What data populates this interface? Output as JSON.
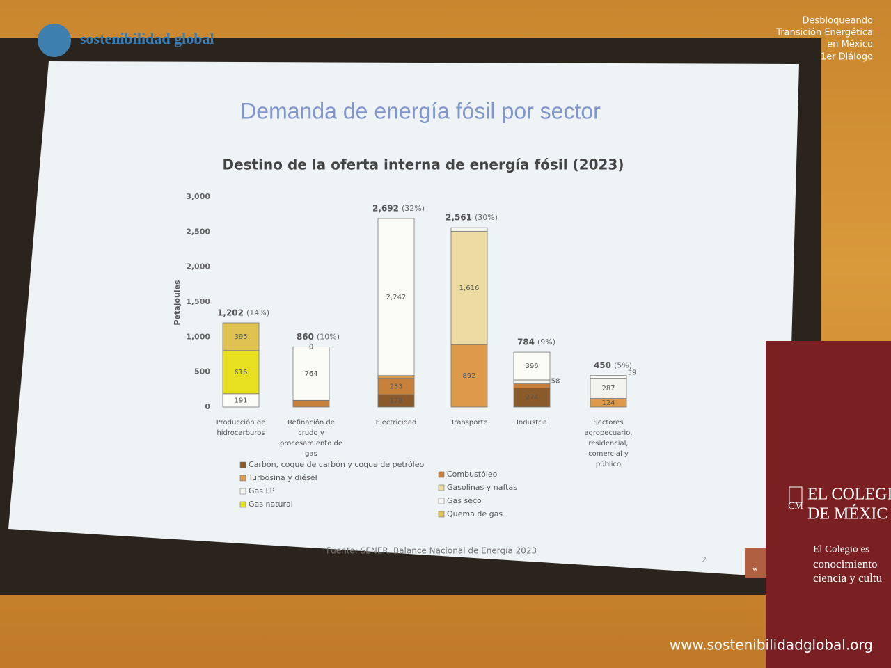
{
  "watermark": {
    "logo": "sostenibilidad global",
    "event": [
      "Desbloqueando",
      "Transición Energética",
      "en México",
      "1er Diálogo"
    ],
    "url": "www.sostenibilidadglobal.org"
  },
  "banner": {
    "logo": "CM",
    "name": [
      "EL COLEGI",
      "DE MÉXIC"
    ],
    "motto": [
      "El Colegio es",
      "conocimiento",
      "ciencia y cultu"
    ]
  },
  "slide": {
    "title": "Demanda de energía fósil por sector",
    "source": "Fuente: SENER. Balance Nacional de Energía 2023",
    "page": "2",
    "nav": "«"
  },
  "chart_data": {
    "type": "stacked_bar",
    "title": "Destino de la oferta interna de energía fósil (2023)",
    "y_label": "Petajoules",
    "categories": [
      "Producción de hidrocarburos",
      "Refinación de crudo y procesamiento de gas",
      "Electricidad",
      "Transporte",
      "Industria",
      "Sectores agropecuario, residencial, comercial y público"
    ],
    "totals": [
      {
        "value": 1202,
        "label": "1,202"
      },
      860,
      {
        "value": 2692,
        "label": "2,692"
      },
      {
        "value": 2561,
        "label": "2,561"
      },
      784,
      450
    ],
    "shares": [
      "(14%)",
      "(10%)",
      "(32%)",
      "(30%)",
      "(9%)",
      "(5%)"
    ],
    "series": [
      {
        "name": "Carbón, coque de carbón y coque de petróleo",
        "color": "#8a5a2b",
        "values": [
          null,
          null,
          178,
          null,
          274,
          null
        ],
        "value_labels": [
          null,
          null,
          "178",
          null,
          "274",
          null
        ]
      },
      {
        "name": "Combustóleo",
        "color": "#c7803a",
        "values": [
          null,
          96,
          233,
          null,
          58,
          null
        ],
        "value_labels": [
          null,
          null,
          "233",
          null,
          "58",
          null
        ]
      },
      {
        "name": "Turbosina y diésel",
        "color": "#dc9a4a",
        "values": [
          null,
          null,
          39,
          892,
          null,
          124
        ],
        "value_labels": [
          null,
          null,
          null,
          "892",
          null,
          "124"
        ]
      },
      {
        "name": "Gasolinas y naftas",
        "color": "#ecdca2",
        "values": [
          null,
          null,
          null,
          1616,
          null,
          null
        ],
        "value_labels": [
          null,
          null,
          null,
          "1,616",
          null,
          null
        ]
      },
      {
        "name": "Gas LP",
        "color": "#f4f4ee",
        "values": [
          null,
          null,
          null,
          53,
          56,
          287
        ],
        "value_labels": [
          null,
          null,
          null,
          null,
          null,
          "287"
        ]
      },
      {
        "name": "Gas seco",
        "color": "#fbfbf8",
        "values": [
          191,
          764,
          2242,
          null,
          396,
          39
        ],
        "value_labels": [
          "191",
          "764",
          "2,242",
          null,
          "396",
          "39"
        ]
      },
      {
        "name": "Gas natural",
        "color": "#e6e020",
        "values": [
          616,
          0,
          null,
          null,
          null,
          null
        ],
        "value_labels": [
          "616",
          "0",
          null,
          null,
          null,
          null
        ]
      },
      {
        "name": "Quema de gas",
        "color": "#dfc252",
        "values": [
          395,
          null,
          null,
          null,
          null,
          null
        ],
        "value_labels": [
          "395",
          null,
          null,
          null,
          null,
          null
        ]
      }
    ],
    "ylim": [
      0,
      3000
    ],
    "yticks": [
      0,
      500,
      {
        "value": 1000,
        "label": "1,000"
      },
      {
        "value": 1500,
        "label": "1,500"
      },
      {
        "value": 2000,
        "label": "2,000"
      },
      {
        "value": 2500,
        "label": "2,500"
      },
      {
        "value": 3000,
        "label": "3,000"
      }
    ],
    "grid": false
  }
}
